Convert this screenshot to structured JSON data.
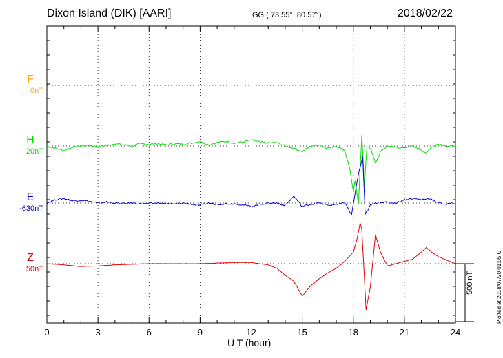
{
  "header": {
    "station": "Dixon Island (DIK)  [AARI]",
    "coords": "GG ( 73.55°,  80.57°)",
    "date": "2018/02/22"
  },
  "components": [
    {
      "key": "F",
      "letter": "F",
      "baseline": "0nT",
      "color": "#ffa500"
    },
    {
      "key": "H",
      "letter": "H",
      "baseline": "20nT",
      "color": "#00dd00"
    },
    {
      "key": "E",
      "letter": "E",
      "baseline": "-630nT",
      "color": "#0000cc"
    },
    {
      "key": "Z",
      "letter": "Z",
      "baseline": "50nT",
      "color": "#dd0000"
    }
  ],
  "scale_label": "500 nT",
  "plotted_note": "Plotted at 2018/07/20 01:05 UT",
  "chart_data": {
    "type": "line",
    "xlabel": "U T (hour)",
    "ylabel": "",
    "xlim": [
      0,
      24
    ],
    "x_ticks": [
      0,
      3,
      6,
      9,
      12,
      15,
      18,
      21,
      24
    ],
    "scale_bar_nT": 500,
    "grid": true,
    "series": [
      {
        "name": "H",
        "color": "#00dd00",
        "points": [
          [
            0,
            0
          ],
          [
            0.5,
            -20
          ],
          [
            1,
            -40
          ],
          [
            1.5,
            -10
          ],
          [
            2,
            0
          ],
          [
            2.5,
            5
          ],
          [
            3,
            -5
          ],
          [
            3.5,
            5
          ],
          [
            4,
            20
          ],
          [
            4.5,
            10
          ],
          [
            5,
            0
          ],
          [
            5.5,
            20
          ],
          [
            6,
            15
          ],
          [
            6.5,
            20
          ],
          [
            7,
            10
          ],
          [
            7.5,
            20
          ],
          [
            8,
            15
          ],
          [
            8.5,
            25
          ],
          [
            9,
            40
          ],
          [
            9.5,
            10
          ],
          [
            10,
            30
          ],
          [
            10.5,
            40
          ],
          [
            11,
            25
          ],
          [
            11.5,
            35
          ],
          [
            12,
            50
          ],
          [
            12.5,
            35
          ],
          [
            13,
            25
          ],
          [
            13.5,
            30
          ],
          [
            14,
            0
          ],
          [
            14.5,
            -20
          ],
          [
            15,
            -50
          ],
          [
            15.5,
            0
          ],
          [
            16,
            10
          ],
          [
            16.5,
            -20
          ],
          [
            17,
            0
          ],
          [
            17.5,
            -40
          ],
          [
            17.8,
            -200
          ],
          [
            18,
            -400
          ],
          [
            18.1,
            -300
          ],
          [
            18.3,
            -500
          ],
          [
            18.5,
            100
          ],
          [
            18.65,
            -350
          ],
          [
            18.8,
            0
          ],
          [
            19,
            -20
          ],
          [
            19.3,
            -150
          ],
          [
            19.6,
            -50
          ],
          [
            20,
            0
          ],
          [
            20.5,
            -10
          ],
          [
            21,
            -20
          ],
          [
            21.5,
            5
          ],
          [
            22,
            -40
          ],
          [
            22.3,
            -60
          ],
          [
            22.5,
            -20
          ],
          [
            23,
            20
          ],
          [
            23.5,
            0
          ],
          [
            24,
            0
          ]
        ]
      },
      {
        "name": "E",
        "color": "#0000cc",
        "points": [
          [
            0,
            0
          ],
          [
            0.5,
            30
          ],
          [
            1,
            40
          ],
          [
            1.5,
            20
          ],
          [
            2,
            25
          ],
          [
            2.5,
            15
          ],
          [
            3,
            0
          ],
          [
            3.5,
            10
          ],
          [
            4,
            0
          ],
          [
            4.5,
            -5
          ],
          [
            5,
            0
          ],
          [
            5.5,
            -5
          ],
          [
            6,
            -5
          ],
          [
            6.5,
            0
          ],
          [
            7,
            -5
          ],
          [
            7.5,
            -10
          ],
          [
            8,
            0
          ],
          [
            8.5,
            -10
          ],
          [
            9,
            -20
          ],
          [
            9.5,
            0
          ],
          [
            10,
            -10
          ],
          [
            10.5,
            -5
          ],
          [
            11,
            -5
          ],
          [
            11.5,
            -15
          ],
          [
            12,
            -30
          ],
          [
            12.5,
            -10
          ],
          [
            13,
            0
          ],
          [
            13.5,
            0
          ],
          [
            14,
            -20
          ],
          [
            14.5,
            60
          ],
          [
            15,
            -30
          ],
          [
            15.5,
            -10
          ],
          [
            16,
            0
          ],
          [
            16.5,
            -20
          ],
          [
            17,
            -10
          ],
          [
            17.5,
            0
          ],
          [
            17.9,
            -100
          ],
          [
            18.1,
            80
          ],
          [
            18.3,
            250
          ],
          [
            18.55,
            400
          ],
          [
            18.7,
            -100
          ],
          [
            19,
            -20
          ],
          [
            19.5,
            10
          ],
          [
            20,
            5
          ],
          [
            20.5,
            0
          ],
          [
            21,
            30
          ],
          [
            21.5,
            40
          ],
          [
            22,
            30
          ],
          [
            22.5,
            40
          ],
          [
            23,
            0
          ],
          [
            23.5,
            -10
          ],
          [
            24,
            0
          ]
        ]
      },
      {
        "name": "Z",
        "color": "#dd0000",
        "points": [
          [
            0,
            0
          ],
          [
            1,
            -10
          ],
          [
            2,
            -25
          ],
          [
            3,
            -20
          ],
          [
            4,
            -10
          ],
          [
            5,
            -5
          ],
          [
            6,
            0
          ],
          [
            7,
            0
          ],
          [
            8,
            0
          ],
          [
            9,
            0
          ],
          [
            10,
            5
          ],
          [
            11,
            10
          ],
          [
            12,
            10
          ],
          [
            12.5,
            0
          ],
          [
            13,
            -10
          ],
          [
            13.5,
            -40
          ],
          [
            14,
            -100
          ],
          [
            14.5,
            -150
          ],
          [
            15,
            -280
          ],
          [
            15.5,
            -190
          ],
          [
            16,
            -130
          ],
          [
            16.5,
            -80
          ],
          [
            17,
            -40
          ],
          [
            17.5,
            20
          ],
          [
            18,
            100
          ],
          [
            18.2,
            200
          ],
          [
            18.4,
            350
          ],
          [
            18.5,
            300
          ],
          [
            18.75,
            -400
          ],
          [
            19,
            -200
          ],
          [
            19.3,
            250
          ],
          [
            19.6,
            100
          ],
          [
            20,
            -20
          ],
          [
            20.5,
            0
          ],
          [
            21,
            20
          ],
          [
            21.5,
            40
          ],
          [
            22,
            100
          ],
          [
            22.3,
            140
          ],
          [
            22.6,
            100
          ],
          [
            23,
            60
          ],
          [
            24,
            0
          ]
        ]
      }
    ]
  }
}
